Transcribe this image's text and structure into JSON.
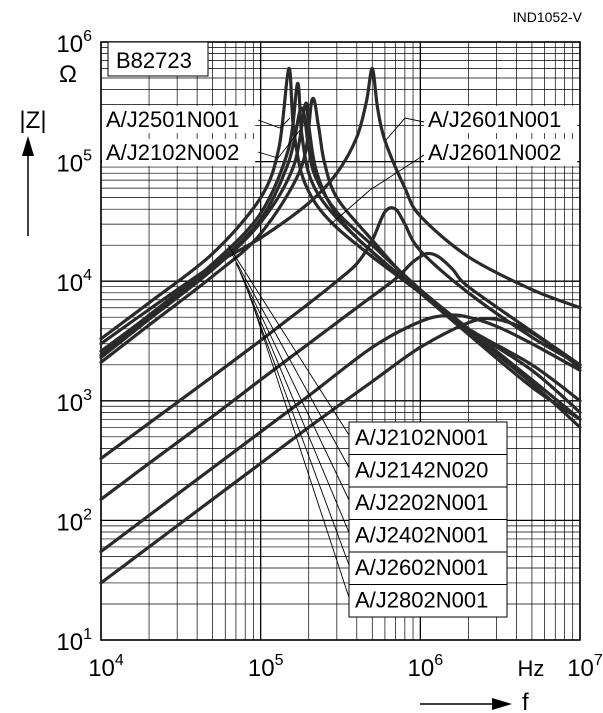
{
  "figure_id": "IND1052-V",
  "chart_data": {
    "type": "line",
    "title": "B82723",
    "x_scale": "log",
    "y_scale": "log",
    "xlim": [
      10000,
      10000000
    ],
    "ylim": [
      10,
      1000000
    ],
    "grid": true,
    "x_ticks": [
      {
        "base": "10",
        "exp": "4"
      },
      {
        "base": "10",
        "exp": "5"
      },
      {
        "base": "10",
        "exp": "6"
      },
      {
        "base": "10",
        "exp": "7"
      }
    ],
    "y_ticks": [
      {
        "base": "10",
        "exp": "1"
      },
      {
        "base": "10",
        "exp": "2"
      },
      {
        "base": "10",
        "exp": "3"
      },
      {
        "base": "10",
        "exp": "4"
      },
      {
        "base": "10",
        "exp": "5"
      },
      {
        "base": "10",
        "exp": "6"
      }
    ],
    "x_unit": "Hz",
    "x_symbol": "f",
    "y_unit": "Ω",
    "y_symbol": "|Z|",
    "series": [
      {
        "name": "A/J2501N001",
        "x": [
          10000,
          20000,
          50000,
          100000,
          130000,
          150000,
          160000,
          180000,
          220000,
          300000,
          500000,
          1000000,
          2000000,
          5000000,
          10000000
        ],
        "y": [
          3300,
          6600,
          17000,
          50000,
          130000,
          600000,
          200000,
          80000,
          45000,
          28000,
          16000,
          8000,
          4000,
          2000,
          1000
        ]
      },
      {
        "name": "A/J2102N002",
        "x": [
          10000,
          20000,
          50000,
          100000,
          150000,
          170000,
          180000,
          200000,
          250000,
          400000,
          1000000,
          2000000,
          5000000,
          10000000
        ],
        "y": [
          2600,
          5200,
          14000,
          37000,
          130000,
          450000,
          180000,
          80000,
          45000,
          23000,
          8000,
          3800,
          1400,
          600
        ]
      },
      {
        "name": "A/J2142N020",
        "x": [
          10000,
          20000,
          50000,
          100000,
          160000,
          190000,
          200000,
          220000,
          270000,
          400000,
          1000000,
          2000000,
          5000000,
          10000000
        ],
        "y": [
          2300,
          4800,
          12500,
          31000,
          90000,
          300000,
          200000,
          90000,
          45000,
          23000,
          8000,
          3600,
          1300,
          700
        ]
      },
      {
        "name": "A/J2202N001",
        "x": [
          10000,
          20000,
          50000,
          100000,
          180000,
          210000,
          230000,
          250000,
          300000,
          500000,
          1000000,
          2000000,
          5000000,
          10000000
        ],
        "y": [
          2100,
          4300,
          11000,
          25000,
          90000,
          330000,
          200000,
          100000,
          50000,
          22000,
          8000,
          4000,
          1800,
          800
        ]
      },
      {
        "name": "A/J2601N001",
        "x": [
          10000,
          20000,
          50000,
          100000,
          200000,
          300000,
          400000,
          460000,
          500000,
          540000,
          600000,
          800000,
          1000000,
          2000000,
          5000000,
          10000000
        ],
        "y": [
          3000,
          5800,
          13500,
          23000,
          45000,
          80000,
          160000,
          320000,
          600000,
          280000,
          150000,
          60000,
          35000,
          16000,
          8500,
          6000
        ]
      },
      {
        "name": "A/J2601N002",
        "x": [
          10000,
          20000,
          50000,
          100000,
          200000,
          300000,
          400000,
          500000,
          600000,
          700000,
          800000,
          1000000,
          2000000,
          5000000,
          10000000
        ],
        "y": [
          330,
          650,
          1600,
          3200,
          6500,
          10000,
          14000,
          22000,
          38000,
          40000,
          30000,
          18000,
          8000,
          3400,
          2000
        ]
      },
      {
        "name": "A/J2402N001",
        "x": [
          10000,
          20000,
          50000,
          100000,
          200000,
          400000,
          700000,
          900000,
          1100000,
          1300000,
          1600000,
          2000000,
          5000000,
          10000000
        ],
        "y": [
          150,
          300,
          740,
          1500,
          3000,
          6000,
          10500,
          14500,
          17000,
          16000,
          12500,
          9000,
          3800,
          2000
        ]
      },
      {
        "name": "A/J2602N001",
        "x": [
          10000,
          20000,
          50000,
          100000,
          200000,
          500000,
          1000000,
          1500000,
          2000000,
          3000000,
          5000000,
          10000000
        ],
        "y": [
          55,
          110,
          275,
          550,
          1100,
          2800,
          4600,
          5200,
          5000,
          4200,
          3000,
          1800
        ]
      },
      {
        "name": "A/J2802N001",
        "x": [
          10000,
          20000,
          50000,
          100000,
          200000,
          500000,
          1000000,
          2000000,
          3000000,
          5000000,
          10000000
        ],
        "y": [
          30,
          60,
          150,
          300,
          600,
          1450,
          2800,
          4500,
          4800,
          3700,
          1900
        ]
      },
      {
        "name": "A/J2102N001",
        "x": [
          10000,
          20000,
          50000,
          100000,
          150000,
          180000,
          200000,
          220000,
          300000,
          500000,
          1000000,
          2000000,
          5000000,
          10000000
        ],
        "y": [
          2400,
          5000,
          13000,
          33000,
          100000,
          280000,
          130000,
          75000,
          38000,
          20000,
          8500,
          4000,
          1500,
          700
        ]
      }
    ],
    "labels_left_top": [
      "A/J2501N001",
      "A/J2102N002"
    ],
    "labels_right_top": [
      "A/J2601N001",
      "A/J2601N002"
    ],
    "labels_bottom": [
      "A/J2102N001",
      "A/J2142N020",
      "A/J2202N001",
      "A/J2402N001",
      "A/J2602N001",
      "A/J2802N001"
    ],
    "colors": {
      "curve": "#2a2a2a",
      "grid": "#000000",
      "background": "#ffffff"
    }
  }
}
